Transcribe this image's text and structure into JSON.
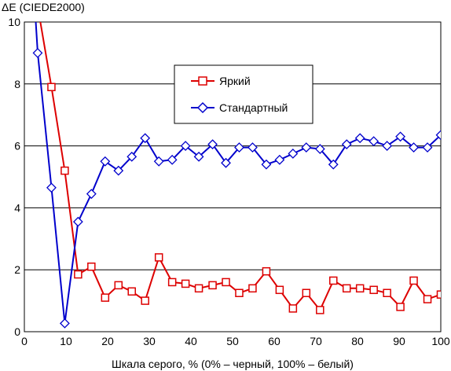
{
  "chart_data": {
    "type": "line",
    "ylabel": "ΔE (CIEDE2000)",
    "xlabel": "Шкала серого, % (0% – черный, 100% – белый)",
    "xlim": [
      0,
      100
    ],
    "ylim": [
      0,
      10
    ],
    "x_ticks": [
      "0",
      "10",
      "20",
      "30",
      "40",
      "50",
      "60",
      "70",
      "80",
      "90",
      "100"
    ],
    "y_ticks": [
      "0",
      "2",
      "4",
      "6",
      "8",
      "10"
    ],
    "grid": "horizontal",
    "legend_position": "center-upper",
    "series": [
      {
        "name": "Яркий",
        "color": "#dd0000",
        "marker": "square",
        "x": [
          3.2,
          6.5,
          9.7,
          12.9,
          16.1,
          19.4,
          22.6,
          25.8,
          29.0,
          32.3,
          35.5,
          38.7,
          41.9,
          45.2,
          48.4,
          51.6,
          54.8,
          58.1,
          61.3,
          64.5,
          67.7,
          71.0,
          74.2,
          77.4,
          80.6,
          83.9,
          87.1,
          90.3,
          93.5,
          96.8,
          100.0
        ],
        "y": [
          10.5,
          7.9,
          5.2,
          1.85,
          2.1,
          1.1,
          1.5,
          1.3,
          1.0,
          2.4,
          1.6,
          1.55,
          1.4,
          1.5,
          1.6,
          1.25,
          1.4,
          1.95,
          1.35,
          0.75,
          1.25,
          0.7,
          1.65,
          1.4,
          1.4,
          1.35,
          1.25,
          0.8,
          1.65,
          1.05,
          1.2
        ]
      },
      {
        "name": "Стандартный",
        "color": "#0000cc",
        "marker": "diamond",
        "x": [
          2.5,
          3.2,
          6.5,
          9.7,
          12.9,
          16.1,
          19.4,
          22.6,
          25.8,
          29.0,
          32.3,
          35.5,
          38.7,
          41.9,
          45.2,
          48.4,
          51.6,
          54.8,
          58.1,
          61.3,
          64.5,
          67.7,
          71.0,
          74.2,
          77.4,
          80.6,
          83.9,
          87.1,
          90.3,
          93.5,
          96.8,
          100.0
        ],
        "y": [
          10.5,
          9.0,
          4.65,
          0.27,
          3.55,
          4.45,
          5.5,
          5.2,
          5.65,
          6.25,
          5.5,
          5.55,
          6.0,
          5.65,
          6.05,
          5.45,
          5.95,
          5.95,
          5.4,
          5.55,
          5.75,
          5.95,
          5.9,
          5.4,
          6.05,
          6.25,
          6.15,
          6.0,
          6.3,
          5.95,
          5.95,
          6.35
        ]
      }
    ]
  }
}
